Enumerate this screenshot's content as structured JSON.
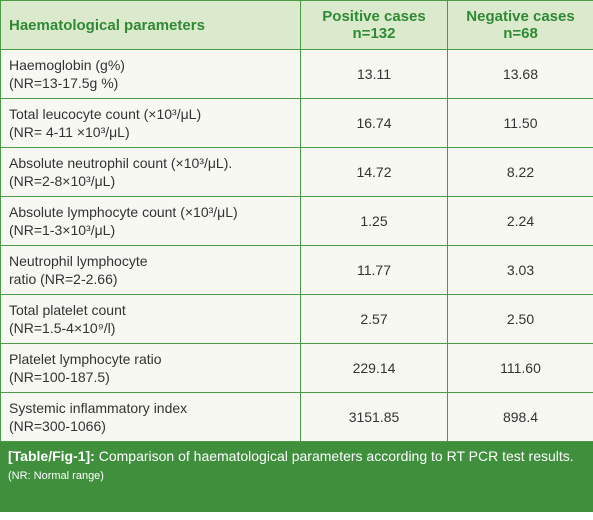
{
  "table": {
    "header": [
      {
        "title": "Haematological parameters"
      },
      {
        "title": "Positive cases",
        "n": "n=132"
      },
      {
        "title": "Negative cases",
        "n": "n=68"
      }
    ],
    "rows": [
      {
        "name": "Haemoglobin (g%)",
        "range": "(NR=13-17.5g %)",
        "positive": "13.11",
        "negative": "13.68"
      },
      {
        "name": "Total leucocyte count (×10³/μL)",
        "range": "(NR= 4-11 ×10³/μL)",
        "positive": "16.74",
        "negative": "11.50"
      },
      {
        "name": "Absolute neutrophil count (×10³/μL).",
        "range": "(NR=2-8×10³/μL)",
        "positive": "14.72",
        "negative": "8.22"
      },
      {
        "name": "Absolute lymphocyte count (×10³/μL)",
        "range": "(NR=1-3×10³/μL)",
        "positive": "1.25",
        "negative": "2.24"
      },
      {
        "name": "Neutrophil lymphocyte",
        "range": "ratio (NR=2-2.66)",
        "positive": "11.77",
        "negative": "3.03"
      },
      {
        "name": "Total platelet count",
        "range": "(NR=1.5-4×10⁹/l)",
        "positive": "2.57",
        "negative": "2.50"
      },
      {
        "name": "Platelet lymphocyte ratio",
        "range": "(NR=100-187.5)",
        "positive": "229.14",
        "negative": "111.60"
      },
      {
        "name": "Systemic inflammatory index",
        "range": "(NR=300-1066)",
        "positive": "3151.85",
        "negative": "898.4"
      }
    ]
  },
  "caption": {
    "label": "[Table/Fig-1]:",
    "text": "Comparison of haematological parameters according to RT PCR test results.",
    "note": "(NR: Normal range)"
  }
}
